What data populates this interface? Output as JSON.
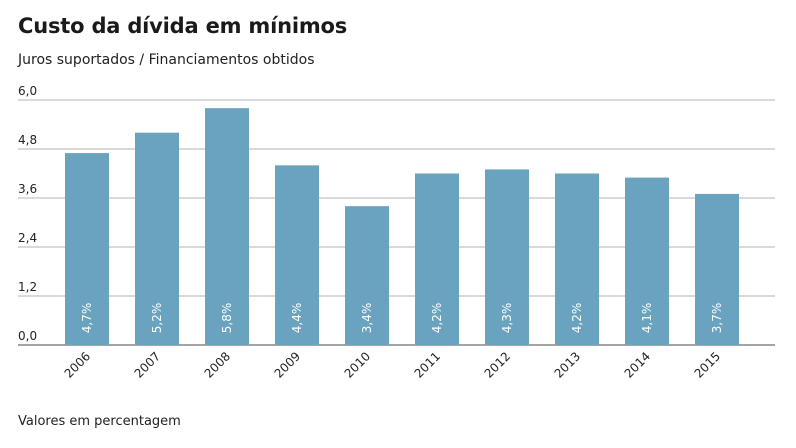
{
  "header": {
    "title": "Custo da dívida em mínimos",
    "subtitle": "Juros suportados / Financiamentos obtidos"
  },
  "footer": {
    "note": "Valores em percentagem"
  },
  "colors": {
    "bar": "#6aa3c0",
    "grid": "#9a9a9a",
    "baseline": "#6e6e6e",
    "bar_label": "#ffffff"
  },
  "chart_data": {
    "type": "bar",
    "categories": [
      "2006",
      "2007",
      "2008",
      "2009",
      "2010",
      "2011",
      "2012",
      "2013",
      "2014",
      "2015"
    ],
    "values": [
      4.7,
      5.2,
      5.8,
      4.4,
      3.4,
      4.2,
      4.3,
      4.2,
      4.1,
      3.7
    ],
    "data_labels": [
      "4,7%",
      "5,2%",
      "5,8%",
      "4,4%",
      "3,4%",
      "4,2%",
      "4,3%",
      "4,2%",
      "4,1%",
      "3,7%"
    ],
    "y_ticks": [
      0,
      1.2,
      2.4,
      3.6,
      4.8,
      6.0
    ],
    "y_tick_labels": [
      "0,0",
      "1,2",
      "2,4",
      "3,6",
      "4,8",
      "6,0"
    ],
    "ylim": [
      0,
      6.0
    ],
    "grid": true,
    "title": "Custo da dívida em mínimos",
    "subtitle": "Juros suportados / Financiamentos obtidos",
    "xlabel": "",
    "ylabel": ""
  }
}
